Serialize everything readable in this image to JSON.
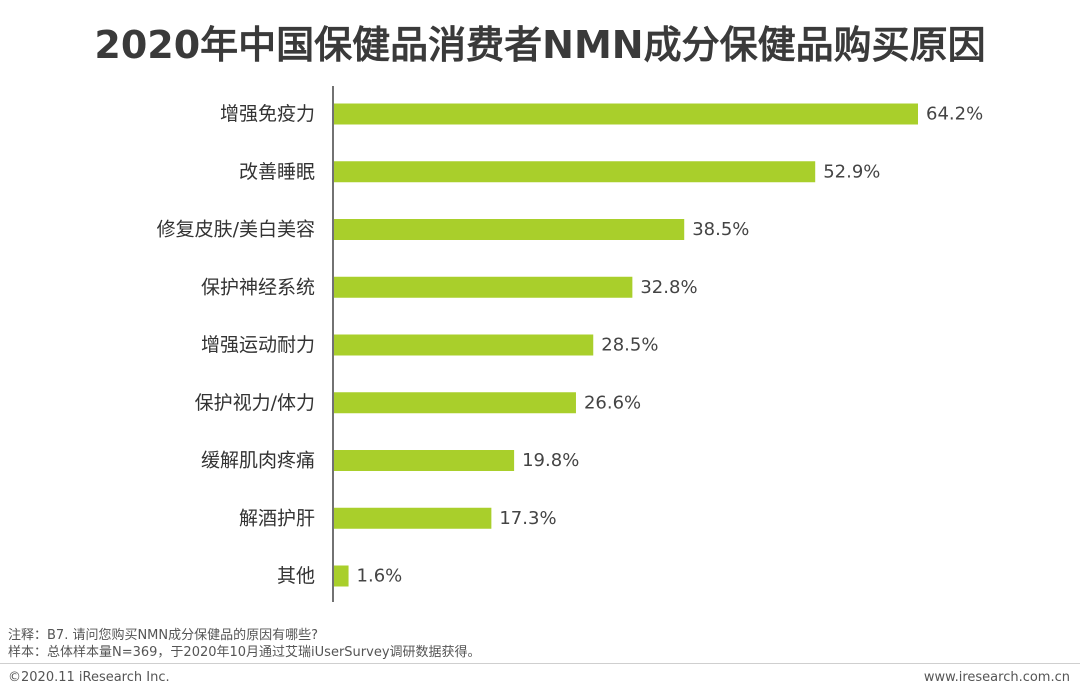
{
  "title": "2020年中国保健品消费者NMN成分保健品购买原因",
  "colors": {
    "bar": "#a9cf2b",
    "axis": "#444444",
    "text": "#333333"
  },
  "chart_data": {
    "type": "bar",
    "orientation": "horizontal",
    "title": "2020年中国保健品消费者NMN成分保健品购买原因",
    "categories": [
      "增强免疫力",
      "改善睡眠",
      "修复皮肤/美白美容",
      "保护神经系统",
      "增强运动耐力",
      "保护视力/体力",
      "缓解肌肉疼痛",
      "解酒护肝",
      "其他"
    ],
    "values": [
      64.2,
      52.9,
      38.5,
      32.8,
      28.5,
      26.6,
      19.8,
      17.3,
      1.6
    ],
    "value_labels": [
      "64.2%",
      "52.9%",
      "38.5%",
      "32.8%",
      "28.5%",
      "26.6%",
      "19.8%",
      "17.3%",
      "1.6%"
    ],
    "unit": "%",
    "xlim": [
      0,
      64.2
    ],
    "grid": false,
    "legend": "none"
  },
  "notes": {
    "note1": "注释：B7. 请问您购买NMN成分保健品的原因有哪些?",
    "note2": "样本：总体样本量N=369，于2020年10月通过艾瑞iUserSurvey调研数据获得。"
  },
  "footer": {
    "copyright": "©2020.11 iResearch Inc.",
    "website": "www.iresearch.com.cn"
  }
}
